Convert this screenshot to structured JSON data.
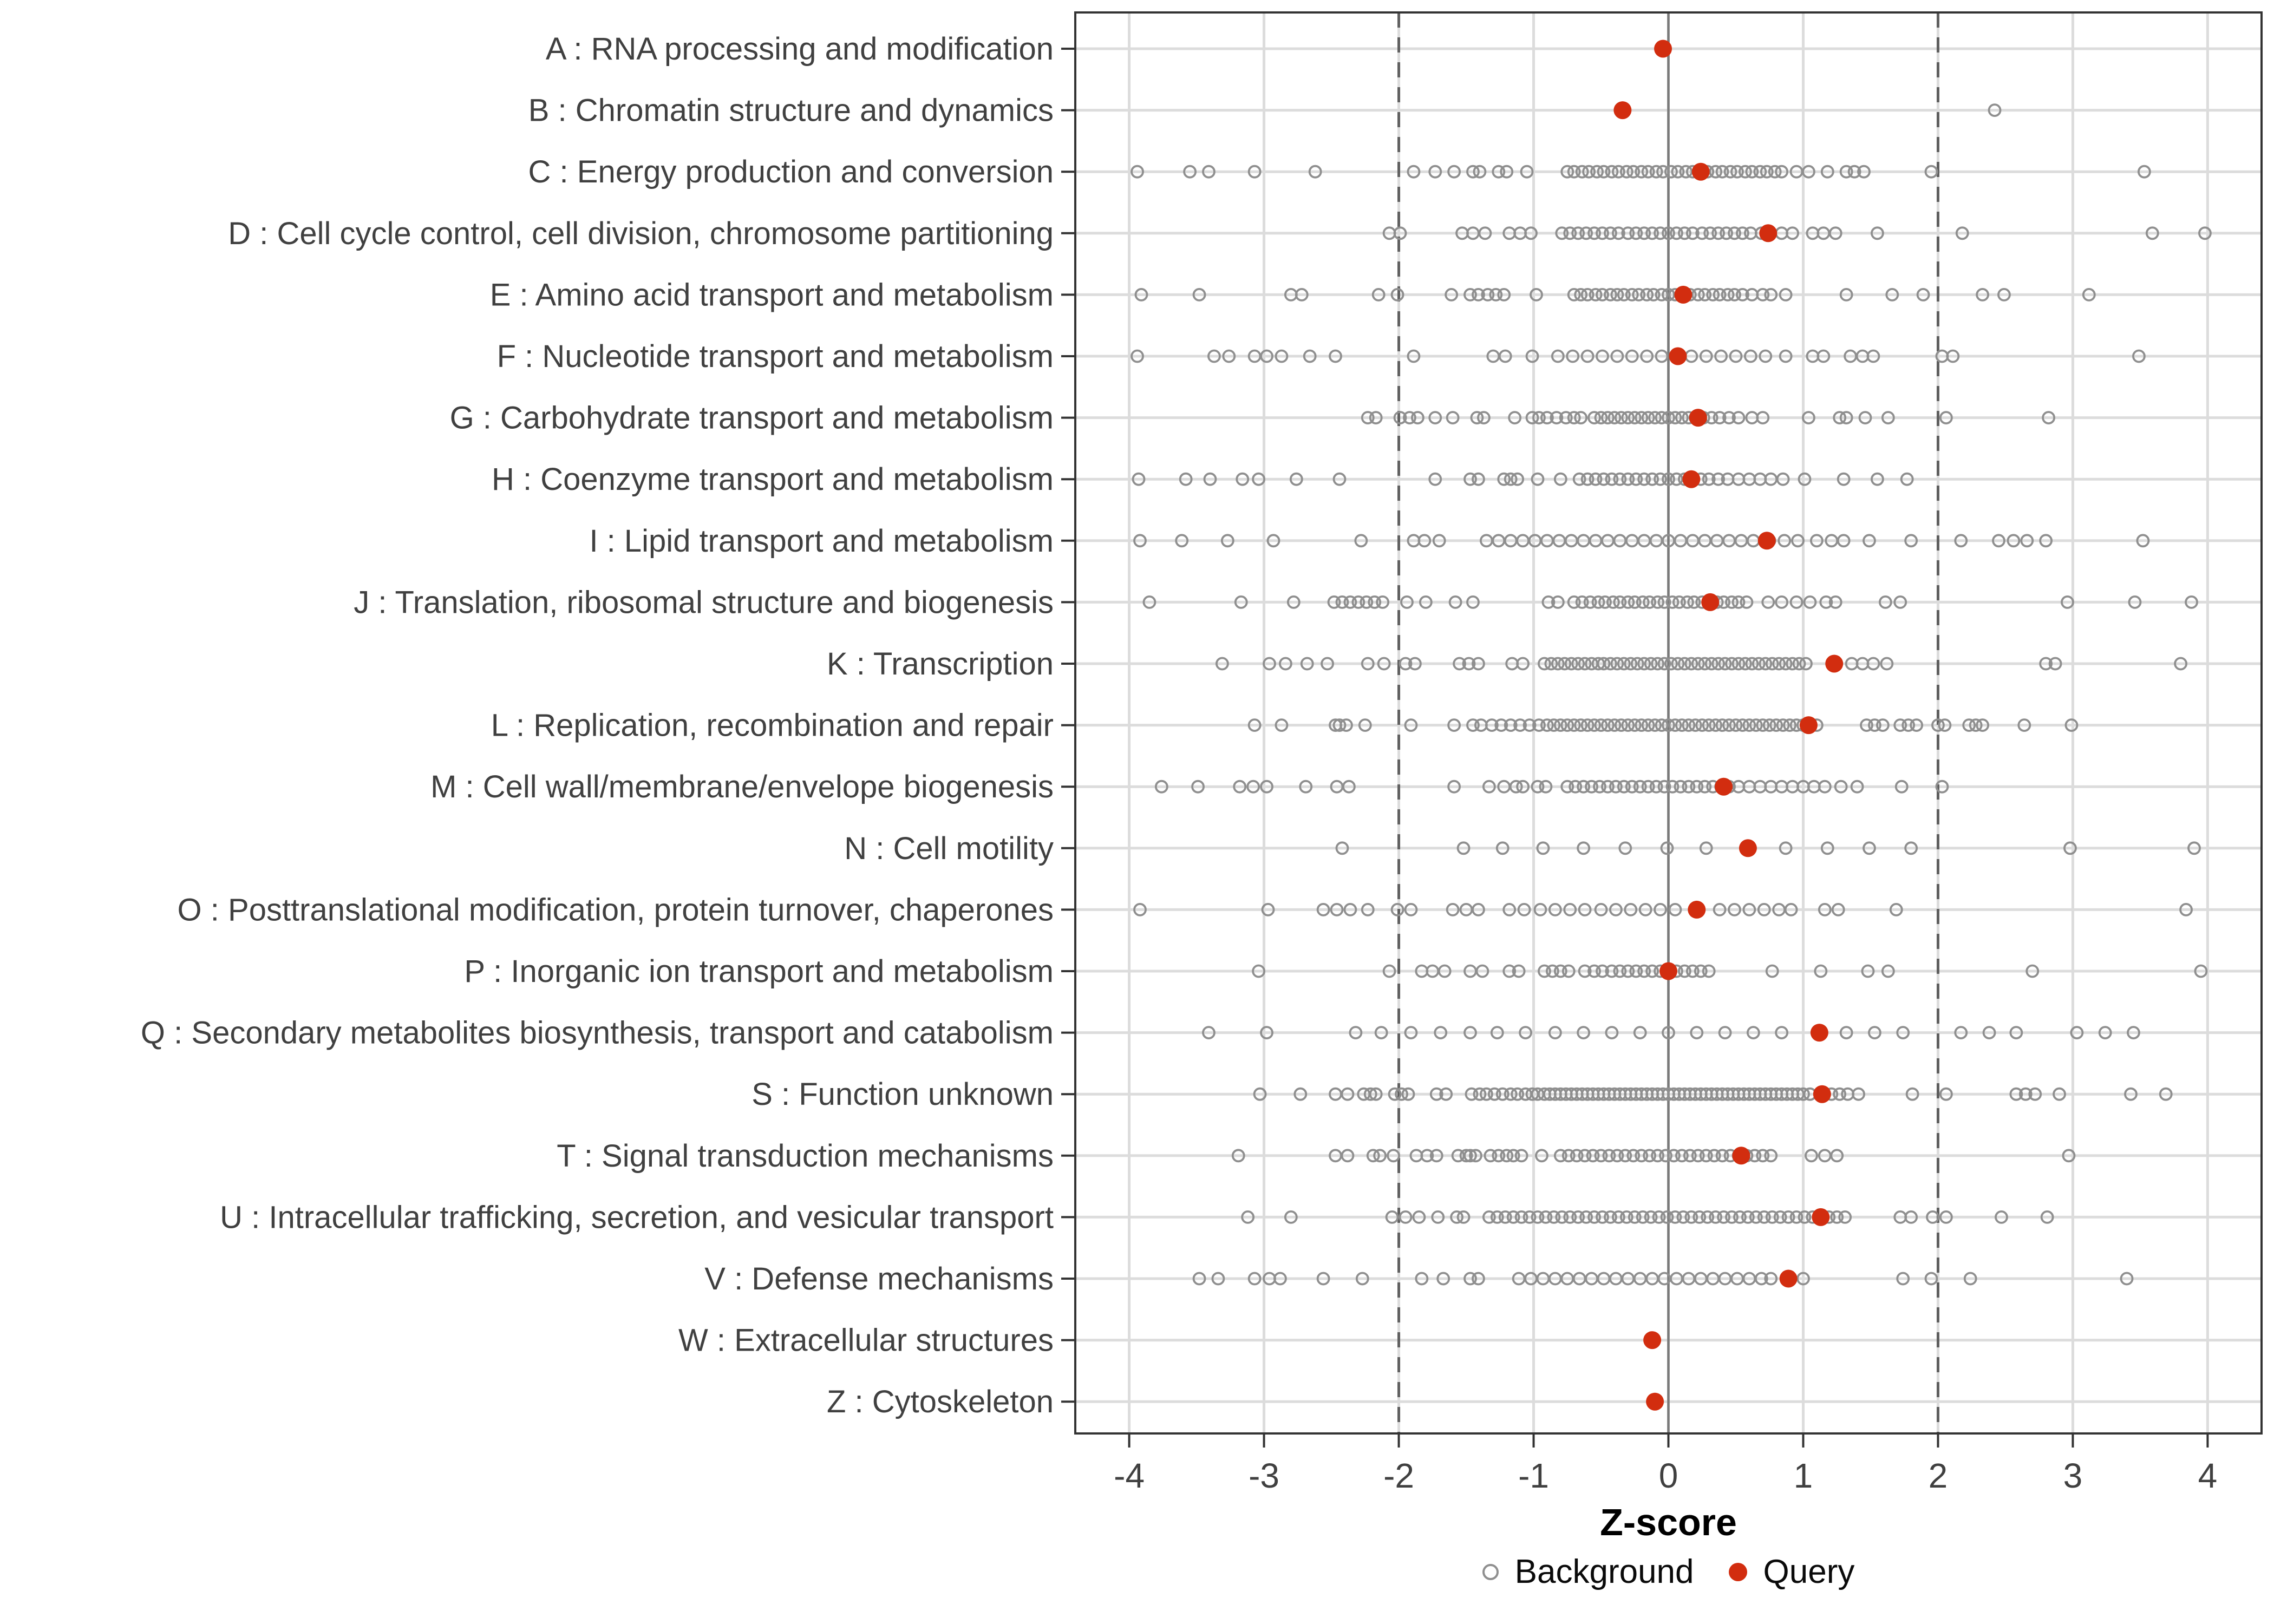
{
  "chart_data": {
    "type": "scatter",
    "title": "",
    "xlabel": "Z-score",
    "ylabel": "",
    "xlim": [
      -4.4,
      4.4
    ],
    "x_ticks": [
      -4,
      -3,
      -2,
      -1,
      0,
      1,
      2,
      3,
      4
    ],
    "grid": true,
    "reference_lines": {
      "solid_at": 0,
      "dashed_at": [
        -2,
        2
      ]
    },
    "legend_position": "bottom",
    "legend": [
      {
        "label": "Background",
        "marker": "open-circle",
        "color": "#8f8f8f"
      },
      {
        "label": "Query",
        "marker": "filled-circle",
        "color": "#d22d0f"
      }
    ],
    "colors": {
      "query_fill": "#d22d0f",
      "background_stroke": "#8f8f8f",
      "gridline": "#dcdcdc",
      "zero_line": "#7a7a7a",
      "dashed_line": "#5f5f5f",
      "panel_border": "#333333",
      "axis_text": "#404040",
      "tick_mark": "#333333"
    },
    "series": [
      {
        "code": "A",
        "label": "A : RNA processing and modification",
        "query": -0.04,
        "background": []
      },
      {
        "code": "B",
        "label": "B : Chromatin structure and dynamics",
        "query": -0.34,
        "background": [
          2.42
        ]
      },
      {
        "code": "C",
        "label": "C : Energy production and conversion",
        "query": 0.24,
        "background": [
          -3.94,
          -3.55,
          -3.41,
          -3.07,
          -2.62,
          -1.89,
          -1.73,
          -1.59,
          -1.45,
          -1.4,
          -1.26,
          -1.2,
          -1.05,
          -0.75,
          -0.7,
          -0.64,
          -0.59,
          -0.53,
          -0.48,
          -0.42,
          -0.37,
          -0.31,
          -0.26,
          -0.2,
          -0.15,
          -0.09,
          -0.04,
          0.02,
          0.07,
          0.13,
          0.18,
          0.24,
          0.29,
          0.35,
          0.4,
          0.46,
          0.51,
          0.57,
          0.62,
          0.68,
          0.73,
          0.79,
          0.84,
          0.95,
          1.04,
          1.18,
          1.32,
          1.38,
          1.45,
          1.95,
          3.53
        ]
      },
      {
        "code": "D",
        "label": "D : Cell cycle control, cell division, chromosome partitioning",
        "query": 0.74,
        "background": [
          -2.07,
          -1.99,
          -1.53,
          -1.45,
          -1.36,
          -1.18,
          -1.1,
          -1.02,
          -0.79,
          -0.73,
          -0.67,
          -0.61,
          -0.55,
          -0.49,
          -0.43,
          -0.37,
          -0.3,
          -0.24,
          -0.18,
          -0.12,
          -0.06,
          0,
          0.06,
          0.12,
          0.18,
          0.25,
          0.31,
          0.37,
          0.43,
          0.49,
          0.55,
          0.61,
          0.69,
          0.84,
          0.92,
          1.07,
          1.15,
          1.24,
          1.55,
          2.18,
          3.59,
          3.98
        ]
      },
      {
        "code": "E",
        "label": "E : Amino acid transport and metabolism",
        "query": 0.11,
        "background": [
          -3.91,
          -3.48,
          -2.8,
          -2.72,
          -2.15,
          -2.01,
          -1.61,
          -1.47,
          -1.41,
          -1.34,
          -1.28,
          -1.22,
          -0.98,
          -0.7,
          -0.65,
          -0.6,
          -0.54,
          -0.49,
          -0.43,
          -0.38,
          -0.33,
          -0.27,
          -0.22,
          -0.16,
          -0.11,
          -0.05,
          0,
          0.05,
          0.11,
          0.16,
          0.22,
          0.27,
          0.33,
          0.38,
          0.44,
          0.49,
          0.55,
          0.62,
          0.7,
          0.76,
          0.87,
          1.32,
          1.66,
          1.89,
          2.33,
          2.49,
          3.12
        ]
      },
      {
        "code": "F",
        "label": "F : Nucleotide transport and metabolism",
        "query": 0.07,
        "background": [
          -3.94,
          -3.37,
          -3.26,
          -3.07,
          -2.98,
          -2.87,
          -2.66,
          -2.47,
          -1.89,
          -1.3,
          -1.21,
          -1.01,
          -0.82,
          -0.71,
          -0.6,
          -0.49,
          -0.38,
          -0.27,
          -0.16,
          -0.05,
          0.06,
          0.17,
          0.28,
          0.39,
          0.5,
          0.61,
          0.72,
          0.87,
          1.07,
          1.15,
          1.35,
          1.44,
          1.52,
          2.03,
          2.11,
          3.49
        ]
      },
      {
        "code": "G",
        "label": "G : Carbohydrate transport and metabolism",
        "query": 0.22,
        "background": [
          -2.23,
          -2.17,
          -1.99,
          -1.92,
          -1.86,
          -1.73,
          -1.6,
          -1.42,
          -1.37,
          -1.14,
          -1.01,
          -0.96,
          -0.9,
          -0.83,
          -0.76,
          -0.7,
          -0.65,
          -0.55,
          -0.5,
          -0.45,
          -0.4,
          -0.35,
          -0.3,
          -0.25,
          -0.2,
          -0.15,
          -0.1,
          -0.05,
          0,
          0.05,
          0.1,
          0.15,
          0.2,
          0.26,
          0.32,
          0.38,
          0.45,
          0.52,
          0.62,
          0.7,
          1.04,
          1.27,
          1.32,
          1.46,
          1.63,
          2.06,
          2.82
        ]
      },
      {
        "code": "H",
        "label": "H : Coenzyme transport and metabolism",
        "query": 0.17,
        "background": [
          -3.93,
          -3.58,
          -3.4,
          -3.16,
          -3.04,
          -2.76,
          -2.44,
          -1.73,
          -1.47,
          -1.41,
          -1.22,
          -1.17,
          -1.12,
          -0.97,
          -0.8,
          -0.66,
          -0.6,
          -0.54,
          -0.48,
          -0.42,
          -0.36,
          -0.3,
          -0.24,
          -0.18,
          -0.12,
          -0.06,
          0,
          0.06,
          0.12,
          0.18,
          0.24,
          0.3,
          0.37,
          0.44,
          0.52,
          0.6,
          0.68,
          0.76,
          0.85,
          1.01,
          1.3,
          1.55,
          1.77
        ]
      },
      {
        "code": "I",
        "label": "I : Lipid transport and metabolism",
        "query": 0.73,
        "background": [
          -3.92,
          -3.61,
          -3.27,
          -2.93,
          -2.28,
          -1.89,
          -1.81,
          -1.7,
          -1.35,
          -1.26,
          -1.17,
          -1.08,
          -0.99,
          -0.9,
          -0.81,
          -0.72,
          -0.63,
          -0.54,
          -0.45,
          -0.36,
          -0.27,
          -0.18,
          -0.09,
          0,
          0.09,
          0.18,
          0.27,
          0.36,
          0.45,
          0.54,
          0.63,
          0.75,
          0.86,
          0.96,
          1.1,
          1.21,
          1.3,
          1.49,
          1.8,
          2.17,
          2.45,
          2.56,
          2.66,
          2.8,
          3.52
        ]
      },
      {
        "code": "J",
        "label": "J : Translation, ribosomal structure and biogenesis",
        "query": 0.31,
        "background": [
          -3.85,
          -3.17,
          -2.78,
          -2.48,
          -2.42,
          -2.36,
          -2.3,
          -2.24,
          -2.18,
          -2.12,
          -1.94,
          -1.8,
          -1.58,
          -1.45,
          -0.89,
          -0.82,
          -0.7,
          -0.64,
          -0.58,
          -0.52,
          -0.47,
          -0.41,
          -0.36,
          -0.3,
          -0.25,
          -0.19,
          -0.14,
          -0.08,
          -0.03,
          0.03,
          0.08,
          0.14,
          0.19,
          0.25,
          0.3,
          0.36,
          0.41,
          0.47,
          0.52,
          0.58,
          0.74,
          0.84,
          0.95,
          1.05,
          1.17,
          1.24,
          1.61,
          1.72,
          2.96,
          3.46,
          3.88
        ]
      },
      {
        "code": "K",
        "label": "K : Transcription",
        "query": 1.23,
        "background": [
          -3.31,
          -2.96,
          -2.84,
          -2.68,
          -2.53,
          -2.23,
          -2.11,
          -1.95,
          -1.88,
          -1.55,
          -1.48,
          -1.41,
          -1.16,
          -1.08,
          -0.92,
          -0.87,
          -0.82,
          -0.77,
          -0.72,
          -0.67,
          -0.62,
          -0.57,
          -0.52,
          -0.48,
          -0.43,
          -0.38,
          -0.33,
          -0.28,
          -0.23,
          -0.18,
          -0.13,
          -0.08,
          -0.03,
          0.02,
          0.07,
          0.12,
          0.17,
          0.22,
          0.27,
          0.32,
          0.37,
          0.42,
          0.47,
          0.52,
          0.57,
          0.62,
          0.67,
          0.72,
          0.77,
          0.82,
          0.87,
          0.92,
          0.97,
          1.02,
          1.36,
          1.44,
          1.52,
          1.62,
          2.8,
          2.87,
          3.8
        ]
      },
      {
        "code": "L",
        "label": "L : Replication, recombination and repair",
        "query": 1.04,
        "background": [
          -3.07,
          -2.87,
          -2.47,
          -2.44,
          -2.39,
          -2.25,
          -1.91,
          -1.59,
          -1.45,
          -1.39,
          -1.31,
          -1.24,
          -1.17,
          -1.1,
          -1.03,
          -0.96,
          -0.9,
          -0.85,
          -0.8,
          -0.75,
          -0.7,
          -0.65,
          -0.6,
          -0.55,
          -0.5,
          -0.45,
          -0.4,
          -0.35,
          -0.3,
          -0.25,
          -0.2,
          -0.15,
          -0.1,
          -0.05,
          0,
          0.05,
          0.1,
          0.15,
          0.2,
          0.25,
          0.3,
          0.35,
          0.4,
          0.45,
          0.5,
          0.55,
          0.6,
          0.65,
          0.7,
          0.75,
          0.8,
          0.85,
          0.9,
          0.95,
          1,
          1.05,
          1.1,
          1.47,
          1.53,
          1.59,
          1.72,
          1.78,
          1.84,
          2,
          2.05,
          2.23,
          2.28,
          2.33,
          2.64,
          2.99
        ]
      },
      {
        "code": "M",
        "label": "M : Cell wall/membrane/envelope biogenesis",
        "query": 0.41,
        "background": [
          -3.76,
          -3.49,
          -3.18,
          -3.08,
          -2.98,
          -2.69,
          -2.46,
          -2.37,
          -1.59,
          -1.33,
          -1.22,
          -1.13,
          -1.08,
          -0.97,
          -0.91,
          -0.75,
          -0.69,
          -0.63,
          -0.57,
          -0.51,
          -0.45,
          -0.39,
          -0.33,
          -0.27,
          -0.21,
          -0.15,
          -0.09,
          -0.03,
          0.03,
          0.09,
          0.15,
          0.21,
          0.27,
          0.33,
          0.39,
          0.45,
          0.52,
          0.6,
          0.68,
          0.76,
          0.84,
          0.92,
          1,
          1.08,
          1.16,
          1.28,
          1.4,
          1.73,
          2.03
        ]
      },
      {
        "code": "N",
        "label": "N : Cell motility",
        "query": 0.59,
        "background": [
          -2.42,
          -1.52,
          -1.23,
          -0.93,
          -0.63,
          -0.32,
          -0.01,
          0.28,
          0.87,
          1.18,
          1.49,
          1.8,
          2.98,
          3.9
        ]
      },
      {
        "code": "O",
        "label": "O : Posttranslational modification, protein turnover, chaperones",
        "query": 0.21,
        "background": [
          -3.92,
          -2.97,
          -2.56,
          -2.46,
          -2.36,
          -2.23,
          -2.01,
          -1.91,
          -1.6,
          -1.5,
          -1.41,
          -1.18,
          -1.07,
          -0.95,
          -0.84,
          -0.73,
          -0.62,
          -0.5,
          -0.39,
          -0.28,
          -0.17,
          -0.06,
          0.05,
          0.38,
          0.49,
          0.6,
          0.71,
          0.82,
          0.91,
          1.16,
          1.26,
          1.69,
          3.84
        ]
      },
      {
        "code": "P",
        "label": "P : Inorganic ion transport and metabolism",
        "query": 0.0,
        "background": [
          -3.04,
          -2.07,
          -1.83,
          -1.75,
          -1.66,
          -1.47,
          -1.38,
          -1.18,
          -1.11,
          -0.92,
          -0.86,
          -0.8,
          -0.74,
          -0.62,
          -0.55,
          -0.49,
          -0.42,
          -0.36,
          -0.3,
          -0.24,
          -0.18,
          -0.12,
          -0.06,
          0,
          0.06,
          0.12,
          0.18,
          0.24,
          0.3,
          0.77,
          1.13,
          1.48,
          1.63,
          2.7,
          3.95
        ]
      },
      {
        "code": "Q",
        "label": "Q : Secondary metabolites biosynthesis, transport and catabolism",
        "query": 1.12,
        "background": [
          -3.41,
          -2.98,
          -2.32,
          -2.13,
          -1.91,
          -1.69,
          -1.47,
          -1.27,
          -1.06,
          -0.84,
          -0.63,
          -0.42,
          -0.21,
          0,
          0.21,
          0.42,
          0.63,
          0.84,
          1.32,
          1.53,
          1.74,
          2.17,
          2.38,
          2.58,
          3.03,
          3.24,
          3.45
        ]
      },
      {
        "code": "S",
        "label": "S : Function unknown",
        "query": 1.14,
        "background": [
          -3.03,
          -2.73,
          -2.47,
          -2.38,
          -2.26,
          -2.21,
          -2.17,
          -2.03,
          -1.98,
          -1.93,
          -1.72,
          -1.65,
          -1.46,
          -1.4,
          -1.35,
          -1.29,
          -1.23,
          -1.17,
          -1.12,
          -1.06,
          -1.01,
          -0.97,
          -0.92,
          -0.88,
          -0.84,
          -0.8,
          -0.76,
          -0.72,
          -0.68,
          -0.64,
          -0.6,
          -0.56,
          -0.52,
          -0.48,
          -0.44,
          -0.4,
          -0.36,
          -0.32,
          -0.28,
          -0.24,
          -0.2,
          -0.16,
          -0.12,
          -0.08,
          -0.04,
          0,
          0.04,
          0.08,
          0.12,
          0.16,
          0.2,
          0.24,
          0.28,
          0.32,
          0.36,
          0.4,
          0.44,
          0.48,
          0.52,
          0.56,
          0.6,
          0.64,
          0.68,
          0.72,
          0.76,
          0.8,
          0.84,
          0.88,
          0.92,
          0.96,
          1,
          1.05,
          1.21,
          1.27,
          1.33,
          1.41,
          1.81,
          2.06,
          2.58,
          2.65,
          2.72,
          2.9,
          3.43,
          3.69
        ]
      },
      {
        "code": "T",
        "label": "T : Signal transduction mechanisms",
        "query": 0.54,
        "background": [
          -3.19,
          -2.47,
          -2.38,
          -2.19,
          -2.14,
          -2.04,
          -1.87,
          -1.79,
          -1.72,
          -1.56,
          -1.5,
          -1.47,
          -1.43,
          -1.32,
          -1.26,
          -1.2,
          -1.15,
          -1.09,
          -0.94,
          -0.8,
          -0.74,
          -0.68,
          -0.62,
          -0.56,
          -0.5,
          -0.44,
          -0.38,
          -0.32,
          -0.26,
          -0.2,
          -0.14,
          -0.08,
          -0.02,
          0.04,
          0.1,
          0.16,
          0.22,
          0.28,
          0.34,
          0.4,
          0.46,
          0.52,
          0.58,
          0.64,
          0.7,
          0.76,
          1.06,
          1.16,
          1.25,
          2.97
        ]
      },
      {
        "code": "U",
        "label": "U : Intracellular trafficking, secretion, and vesicular transport",
        "query": 1.13,
        "background": [
          -3.12,
          -2.8,
          -2.05,
          -1.95,
          -1.85,
          -1.71,
          -1.57,
          -1.52,
          -1.33,
          -1.27,
          -1.21,
          -1.15,
          -1.09,
          -1.03,
          -0.97,
          -0.91,
          -0.85,
          -0.79,
          -0.73,
          -0.67,
          -0.61,
          -0.55,
          -0.49,
          -0.43,
          -0.37,
          -0.31,
          -0.25,
          -0.19,
          -0.13,
          -0.07,
          -0.01,
          0.05,
          0.11,
          0.17,
          0.23,
          0.29,
          0.35,
          0.41,
          0.47,
          0.53,
          0.59,
          0.65,
          0.71,
          0.77,
          0.83,
          0.89,
          0.95,
          1.01,
          1.07,
          1.13,
          1.19,
          1.25,
          1.31,
          1.72,
          1.8,
          1.96,
          2.06,
          2.47,
          2.81
        ]
      },
      {
        "code": "V",
        "label": "V : Defense mechanisms",
        "query": 0.89,
        "background": [
          -3.48,
          -3.34,
          -3.07,
          -2.96,
          -2.88,
          -2.56,
          -2.27,
          -1.83,
          -1.67,
          -1.47,
          -1.41,
          -1.11,
          -1.02,
          -0.93,
          -0.84,
          -0.75,
          -0.66,
          -0.57,
          -0.48,
          -0.39,
          -0.3,
          -0.21,
          -0.12,
          -0.03,
          0.06,
          0.15,
          0.24,
          0.33,
          0.42,
          0.51,
          0.6,
          0.69,
          0.76,
          1,
          1.74,
          1.95,
          2.24,
          3.4
        ]
      },
      {
        "code": "W",
        "label": "W : Extracellular structures",
        "query": -0.12,
        "background": []
      },
      {
        "code": "Z",
        "label": "Z : Cytoskeleton",
        "query": -0.1,
        "background": []
      }
    ]
  }
}
